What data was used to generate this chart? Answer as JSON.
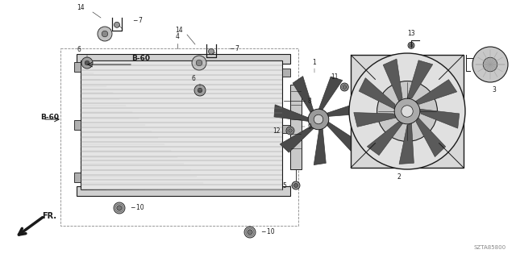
{
  "bg_color": "#ffffff",
  "part_number": "SZTA85800",
  "fr_label": "FR.",
  "dark": "#1a1a1a",
  "gray": "#666666",
  "light_gray": "#cccccc",
  "med_gray": "#999999"
}
